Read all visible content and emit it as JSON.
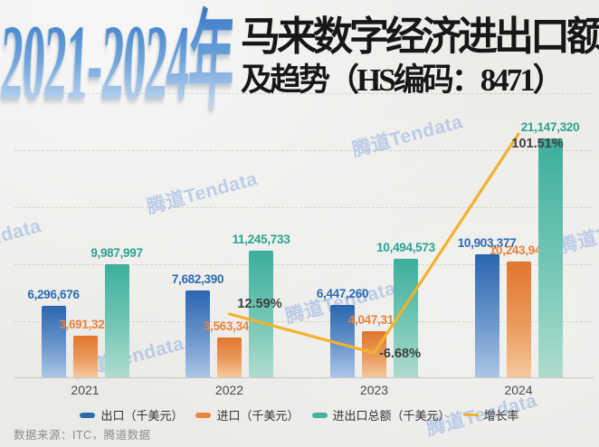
{
  "title": {
    "year_range": "2021-2024年",
    "line1": "马来数字经济进出口额",
    "line2": "及趋势（HS编码：8471）"
  },
  "watermark": {
    "text": "腾道Tendata",
    "color": "#80a6dd"
  },
  "footer": {
    "source": "数据来源：ITC，腾道数据"
  },
  "chart_data": {
    "type": "bar",
    "subtype": "grouped-bars-with-growth-line-overlay",
    "title": "2021-2024年马来数字经济进出口额及趋势（HS编码：8471）",
    "categories": [
      "2021",
      "2022",
      "2023",
      "2024"
    ],
    "series": [
      {
        "name": "出口（千美元）",
        "type": "bar",
        "color": "#2e6cb2",
        "values": [
          6296676,
          7682390,
          6447260,
          10903377
        ],
        "labels": [
          "6,296,676",
          "7,682,390",
          "6,447,260",
          "10,903,377"
        ]
      },
      {
        "name": "进口（千美元）",
        "type": "bar",
        "color": "#e8863c",
        "values": [
          3691321,
          3563343,
          4047313,
          10243943
        ],
        "labels": [
          "3,691,321",
          "3,563,343",
          "4,047,313",
          "10,243,943"
        ]
      },
      {
        "name": "进出口总额（千美元）",
        "type": "bar",
        "color": "#45b2a1",
        "values": [
          9987997,
          11245733,
          10494573,
          21147320
        ],
        "labels": [
          "9,987,997",
          "11,245,733",
          "10,494,573",
          "21,147,320"
        ]
      },
      {
        "name": "增长率",
        "type": "line",
        "color": "#f2b22d",
        "values": [
          null,
          12.59,
          -6.68,
          101.51
        ],
        "labels": [
          null,
          "12.59%",
          "-6.68%",
          "101.51%"
        ]
      }
    ],
    "ylim": [
      0,
      21147320
    ],
    "grid": "faint horizontal dashed lines",
    "legend_position": "bottom",
    "xlabel": "",
    "ylabel": ""
  },
  "legend": {
    "items": [
      {
        "label": "出口（千美元）",
        "color": "#2e6cb2",
        "shape": "rect"
      },
      {
        "label": "进口（千美元）",
        "color": "#e8863c",
        "shape": "rect"
      },
      {
        "label": "进出口总额（千美元）",
        "color": "#45b2a1",
        "shape": "rect"
      },
      {
        "label": "增长率",
        "color": "#f2b22d",
        "shape": "line"
      }
    ]
  }
}
